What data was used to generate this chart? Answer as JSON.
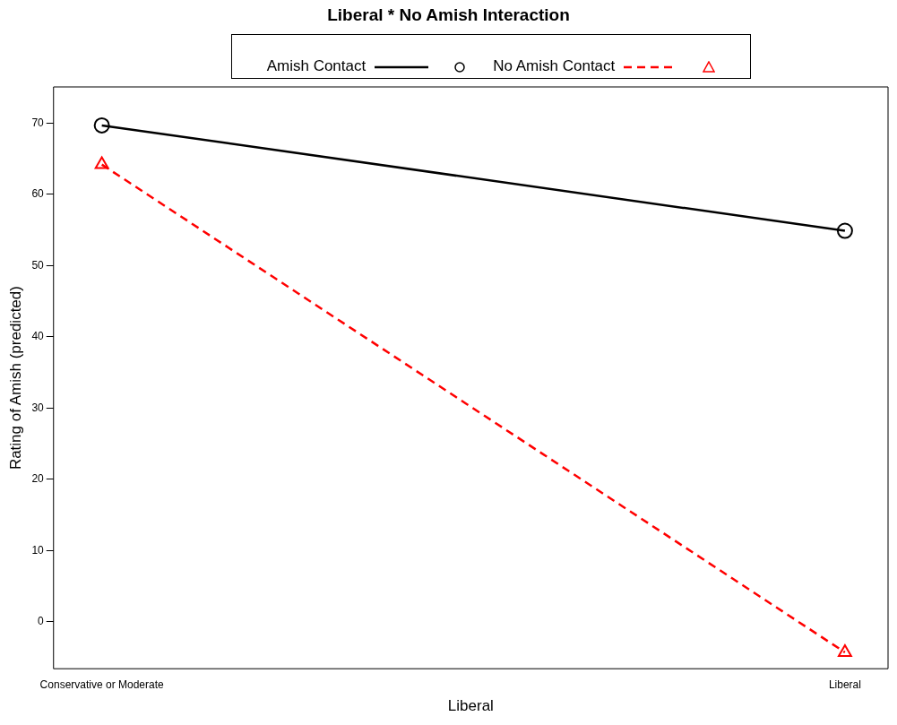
{
  "chart_data": {
    "type": "line",
    "title": "Liberal * No Amish Interaction",
    "xlabel": "Liberal",
    "ylabel": "Rating of Amish (predicted)",
    "categories": [
      "Conservative or Moderate",
      "Liberal"
    ],
    "series": [
      {
        "name": "Amish Contact",
        "color": "#000000",
        "values": [
          69.7,
          54.9
        ],
        "marker": "circle",
        "line_style": "solid"
      },
      {
        "name": "No Amish Contact",
        "color": "#ff0000",
        "values": [
          64.2,
          -4.3
        ],
        "marker": "triangle",
        "line_style": "dashed"
      }
    ],
    "ylim": [
      -6.6,
      75.1
    ],
    "yticks": [
      0,
      10,
      20,
      30,
      40,
      50,
      60,
      70
    ],
    "grid": false,
    "legend": "top"
  }
}
